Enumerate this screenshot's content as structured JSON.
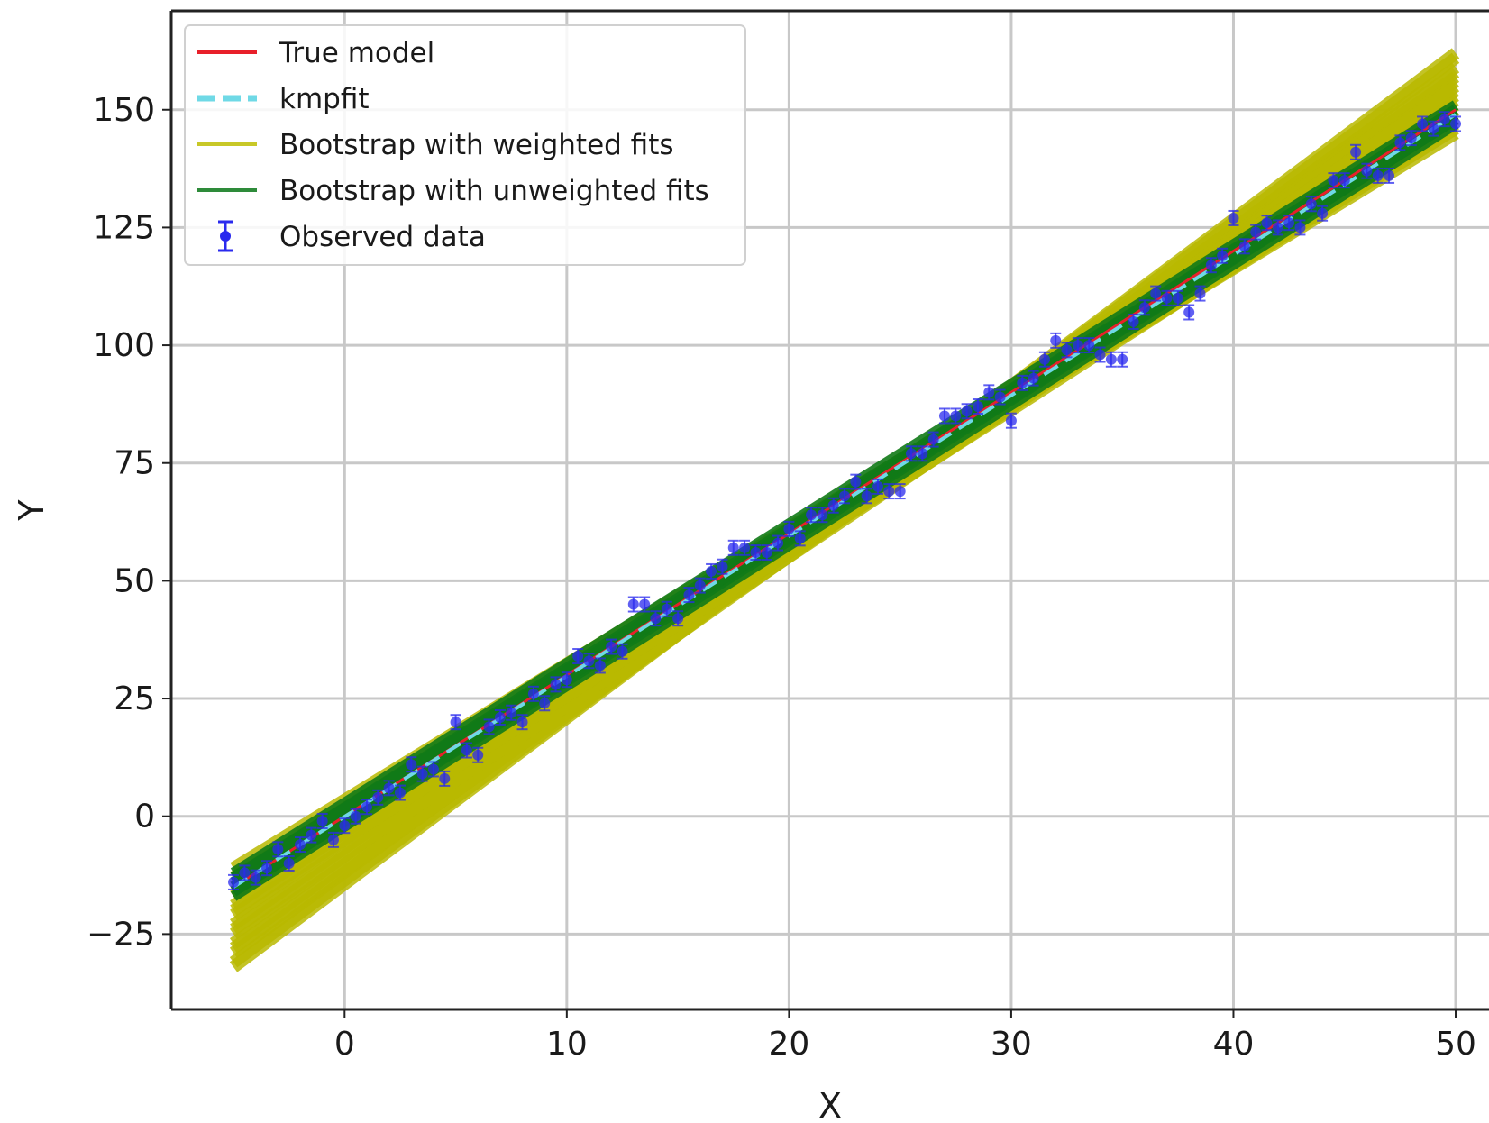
{
  "chart_data": {
    "type": "line",
    "title": "",
    "xlabel": "X",
    "ylabel": "Y",
    "xlim": [
      -7.8,
      51.5
    ],
    "ylim": [
      -41,
      171
    ],
    "xticks": [
      0,
      10,
      20,
      30,
      40,
      50
    ],
    "yticks": [
      -25,
      0,
      25,
      50,
      75,
      100,
      125,
      150
    ],
    "grid": true,
    "legend": {
      "placement": "top-left",
      "entries": [
        {
          "label": "True model",
          "color": "#e8202a",
          "style": "line"
        },
        {
          "label": "kmpfit",
          "color": "#6fd9e6",
          "style": "dashed"
        },
        {
          "label": "Bootstrap with weighted fits",
          "color": "#c8c828",
          "style": "line"
        },
        {
          "label": "Bootstrap with unweighted fits",
          "color": "#2e8b3a",
          "style": "line"
        },
        {
          "label": "Observed data",
          "color": "#2a2aee",
          "style": "errorbar"
        }
      ]
    },
    "series": [
      {
        "name": "True model",
        "x": [
          -5,
          50
        ],
        "y": [
          -15,
          150
        ],
        "color": "#e8202a"
      },
      {
        "name": "kmpfit",
        "x": [
          -5,
          50
        ],
        "y": [
          -15,
          149
        ],
        "color": "#6fd9e6"
      },
      {
        "name": "Bootstrap with weighted fits",
        "color": "#b9b900",
        "band": {
          "x": [
            -5,
            50
          ],
          "lines": [
            [
              -11,
              148
            ],
            [
              -13,
              149
            ],
            [
              -15,
              151
            ],
            [
              -17,
              152
            ],
            [
              -19,
              153
            ],
            [
              -21,
              154
            ],
            [
              -23,
              156
            ],
            [
              -25,
              157
            ],
            [
              -27,
              158
            ],
            [
              -29,
              159
            ],
            [
              -31,
              161
            ],
            [
              -32,
              162
            ],
            [
              -28,
              155
            ],
            [
              -24,
              150
            ],
            [
              -20,
              147
            ],
            [
              -16,
              146
            ],
            [
              -13,
              145
            ]
          ]
        }
      },
      {
        "name": "Bootstrap with unweighted fits",
        "color": "#117a17",
        "band": {
          "x": [
            -5,
            50
          ],
          "lines": [
            [
              -12,
              151
            ],
            [
              -13,
              150
            ],
            [
              -14,
              150
            ],
            [
              -15,
              149
            ],
            [
              -15,
              148
            ],
            [
              -16,
              148
            ],
            [
              -17,
              147
            ],
            [
              -14,
              149
            ],
            [
              -16,
              150
            ],
            [
              -13,
              148
            ]
          ]
        }
      },
      {
        "name": "Observed data",
        "color": "#2a2aee",
        "points": [
          [
            -5,
            -14
          ],
          [
            -4.5,
            -12
          ],
          [
            -4,
            -13
          ],
          [
            -3.5,
            -11
          ],
          [
            -3,
            -7
          ],
          [
            -2.5,
            -10
          ],
          [
            -2,
            -6
          ],
          [
            -1.5,
            -4
          ],
          [
            -1,
            -1
          ],
          [
            -0.5,
            -5
          ],
          [
            0,
            -2
          ],
          [
            0.5,
            0
          ],
          [
            1,
            2
          ],
          [
            1.5,
            4
          ],
          [
            2,
            6
          ],
          [
            2.5,
            5
          ],
          [
            3,
            11
          ],
          [
            3.5,
            9
          ],
          [
            4,
            10
          ],
          [
            4.5,
            8
          ],
          [
            5,
            20
          ],
          [
            5.5,
            14
          ],
          [
            6,
            13
          ],
          [
            6.5,
            19
          ],
          [
            7,
            21
          ],
          [
            7.5,
            22
          ],
          [
            8,
            20
          ],
          [
            8.5,
            26
          ],
          [
            9,
            24
          ],
          [
            9.5,
            28
          ],
          [
            10,
            29
          ],
          [
            10.5,
            34
          ],
          [
            11,
            33
          ],
          [
            11.5,
            32
          ],
          [
            12,
            36
          ],
          [
            12.5,
            35
          ],
          [
            13,
            45
          ],
          [
            13.5,
            45
          ],
          [
            14,
            42
          ],
          [
            14.5,
            44
          ],
          [
            15,
            42
          ],
          [
            15.5,
            47
          ],
          [
            16,
            49
          ],
          [
            16.5,
            52
          ],
          [
            17,
            53
          ],
          [
            17.5,
            57
          ],
          [
            18,
            57
          ],
          [
            18.5,
            56
          ],
          [
            19,
            56
          ],
          [
            19.5,
            58
          ],
          [
            20,
            61
          ],
          [
            20.5,
            59
          ],
          [
            21,
            64
          ],
          [
            21.5,
            64
          ],
          [
            22,
            66
          ],
          [
            22.5,
            68
          ],
          [
            23,
            71
          ],
          [
            23.5,
            68
          ],
          [
            24,
            70
          ],
          [
            24.5,
            69
          ],
          [
            25,
            69
          ],
          [
            25.5,
            77
          ],
          [
            26,
            77
          ],
          [
            26.5,
            80
          ],
          [
            27,
            85
          ],
          [
            27.5,
            85
          ],
          [
            28,
            86
          ],
          [
            28.5,
            87
          ],
          [
            29,
            90
          ],
          [
            29.5,
            89
          ],
          [
            30,
            84
          ],
          [
            30.5,
            92
          ],
          [
            31,
            93
          ],
          [
            31.5,
            97
          ],
          [
            32,
            101
          ],
          [
            32.5,
            99
          ],
          [
            33,
            100
          ],
          [
            33.5,
            100
          ],
          [
            34,
            98
          ],
          [
            34.5,
            97
          ],
          [
            35,
            97
          ],
          [
            35.5,
            105
          ],
          [
            36,
            108
          ],
          [
            36.5,
            111
          ],
          [
            37,
            110
          ],
          [
            37.5,
            110
          ],
          [
            38,
            107
          ],
          [
            38.5,
            111
          ],
          [
            39,
            117
          ],
          [
            39.5,
            119
          ],
          [
            40,
            127
          ],
          [
            40.5,
            121
          ],
          [
            41,
            124
          ],
          [
            41.5,
            126
          ],
          [
            42,
            125
          ],
          [
            42.5,
            126
          ],
          [
            43,
            125
          ],
          [
            43.5,
            130
          ],
          [
            44,
            128
          ],
          [
            44.5,
            135
          ],
          [
            45,
            135
          ],
          [
            45.5,
            141
          ],
          [
            46,
            137
          ],
          [
            46.5,
            136
          ],
          [
            47,
            136
          ],
          [
            47.5,
            143
          ],
          [
            48,
            144
          ],
          [
            48.5,
            147
          ],
          [
            49,
            146
          ],
          [
            49.5,
            148
          ],
          [
            50,
            147
          ]
        ]
      }
    ]
  }
}
